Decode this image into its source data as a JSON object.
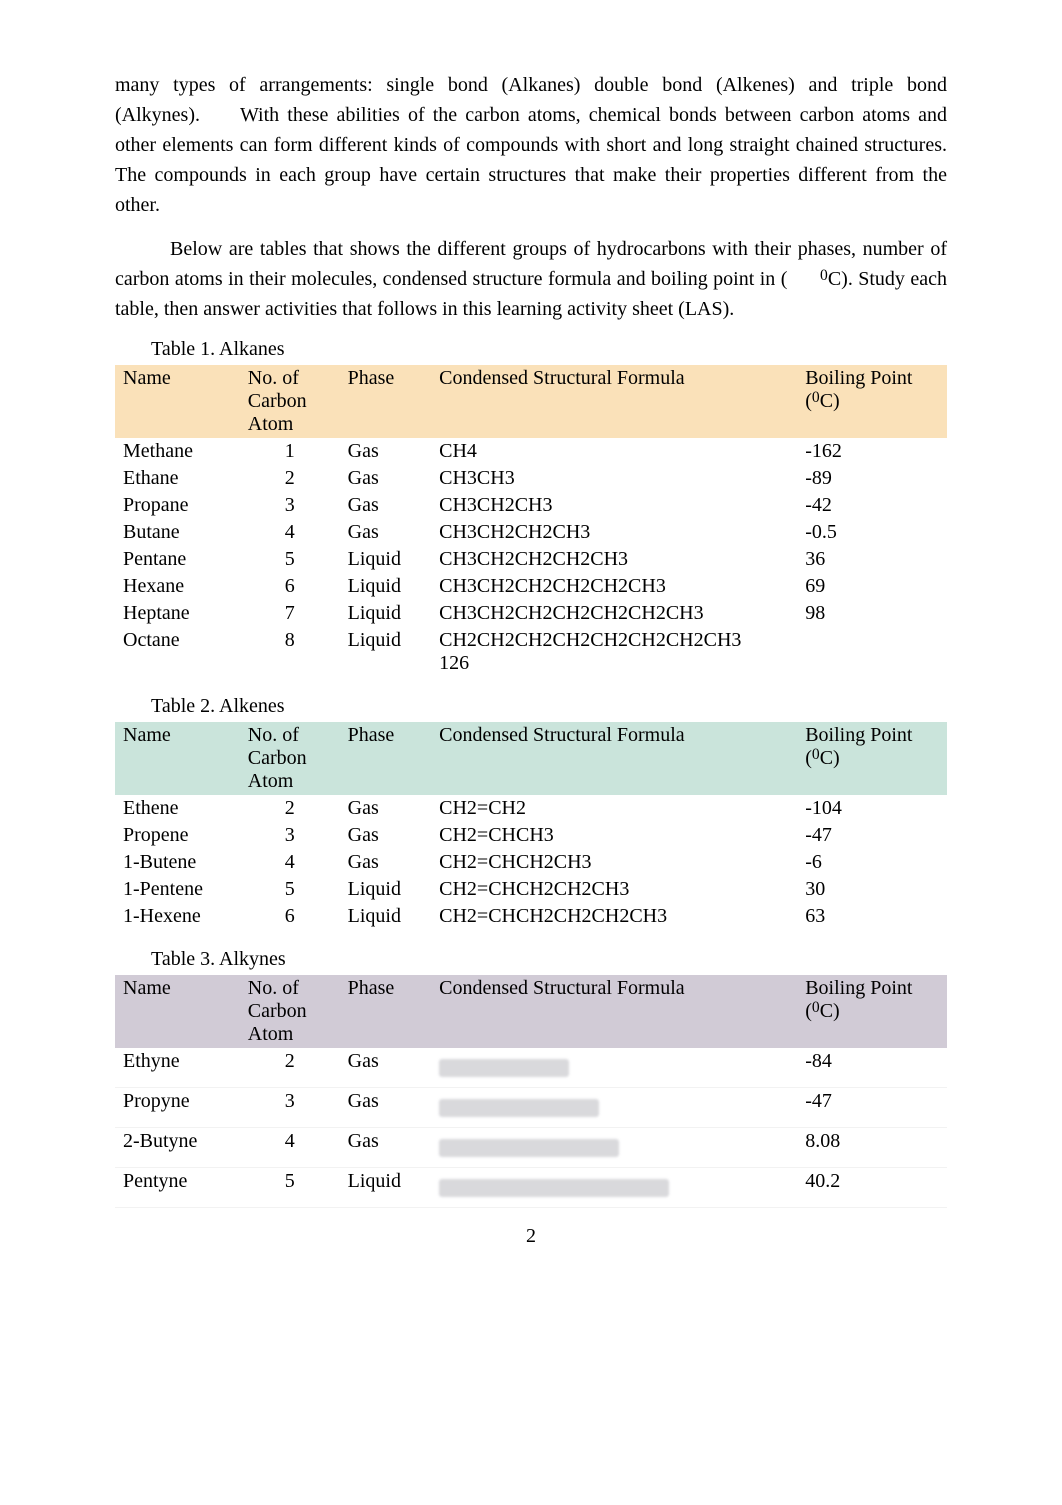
{
  "paragraphs": {
    "p1": "many types of arrangements: single bond (Alkanes) double bond (Alkenes) and triple bond (Alkynes).  With these abilities of the carbon atoms, chemical bonds between carbon atoms and other elements can form different kinds of compounds with short and long straight chained structures. The compounds in each group have certain structures that make their properties different from the other.",
    "p2a": "Below are tables that shows the different groups of hydrocarbons with their phases, number of carbon atoms in their molecules, condensed structure formula and boiling point in (",
    "p2b": "C). Study each table, then answer activities that follows in this learning activity sheet (LAS)."
  },
  "captions": {
    "t1": "Table 1. Alkanes",
    "t2": "Table 2. Alkenes",
    "t3": "Table 3. Alkynes"
  },
  "headers": {
    "name": "Name",
    "no": "No. of Carbon Atom",
    "phase": "Phase",
    "formula": "Condensed Structural Formula",
    "bp": "Boiling Point (",
    "bp_unit_sup": "0",
    "bp_unit_after": "C)"
  },
  "table1": {
    "header_bg": "#fae1b9",
    "rows": [
      {
        "name": "Methane",
        "no": "1",
        "phase": "Gas",
        "formula": "CH4",
        "bp": "-162"
      },
      {
        "name": "Ethane",
        "no": "2",
        "phase": "Gas",
        "formula": "CH3CH3",
        "bp": "-89"
      },
      {
        "name": "Propane",
        "no": "3",
        "phase": "Gas",
        "formula": "CH3CH2CH3",
        "bp": "-42"
      },
      {
        "name": "Butane",
        "no": "4",
        "phase": "Gas",
        "formula": "CH3CH2CH2CH3",
        "bp": "-0.5"
      },
      {
        "name": "Pentane",
        "no": "5",
        "phase": "Liquid",
        "formula": "CH3CH2CH2CH2CH3",
        "bp": "36"
      },
      {
        "name": "Hexane",
        "no": "6",
        "phase": "Liquid",
        "formula": "CH3CH2CH2CH2CH2CH3",
        "bp": "69"
      },
      {
        "name": "Heptane",
        "no": "7",
        "phase": "Liquid",
        "formula": "CH3CH2CH2CH2CH2CH2CH3",
        "bp": "98"
      },
      {
        "name": "Octane",
        "no": "8",
        "phase": "Liquid",
        "formula": "CH2CH2CH2CH2CH2CH2CH2CH3 126",
        "bp": ""
      }
    ]
  },
  "table2": {
    "header_bg": "#cae4db",
    "rows": [
      {
        "name": "Ethene",
        "no": "2",
        "phase": "Gas",
        "formula": "CH2=CH2",
        "bp": "-104"
      },
      {
        "name": "Propene",
        "no": "3",
        "phase": "Gas",
        "formula": "CH2=CHCH3",
        "bp": "-47"
      },
      {
        "name": "1-Butene",
        "no": "4",
        "phase": "Gas",
        "formula": "CH2=CHCH2CH3",
        "bp": "-6"
      },
      {
        "name": "1-Pentene",
        "no": "5",
        "phase": "Liquid",
        "formula": "CH2=CHCH2CH2CH3",
        "bp": "30"
      },
      {
        "name": "1-Hexene",
        "no": "6",
        "phase": "Liquid",
        "formula": "CH2=CHCH2CH2CH2CH3",
        "bp": "63"
      }
    ]
  },
  "table3": {
    "header_bg": "#d1cbd6",
    "rows": [
      {
        "name": "Ethyne",
        "no": "2",
        "phase": "Gas",
        "blur_width": 130,
        "bp": "-84"
      },
      {
        "name": "Propyne",
        "no": "3",
        "phase": "Gas",
        "blur_width": 160,
        "bp": "-47"
      },
      {
        "name": "2-Butyne",
        "no": "4",
        "phase": "Gas",
        "blur_width": 180,
        "bp": "8.08"
      },
      {
        "name": "Pentyne",
        "no": "5",
        "phase": "Liquid",
        "blur_width": 230,
        "bp": "40.2"
      }
    ]
  },
  "page_number": "2",
  "colors": {
    "text": "#000000",
    "page_bg": "#ffffff",
    "blur": "#d9d9dc"
  },
  "header_extras": {
    "deg_sup": "0"
  }
}
